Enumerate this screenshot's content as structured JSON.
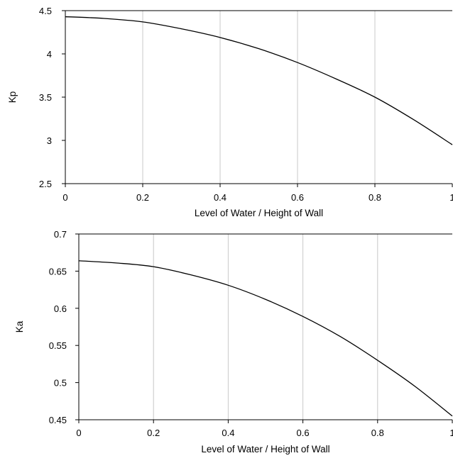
{
  "chart_data": [
    {
      "type": "line",
      "title": "",
      "xlabel": "Level of Water / Height of Wall",
      "ylabel": "Kp",
      "xlim": [
        0,
        1
      ],
      "ylim": [
        2.5,
        4.5
      ],
      "xticks": [
        "0",
        "0.2",
        "0.4",
        "0.6",
        "0.8",
        "1"
      ],
      "yticks": [
        "2.5",
        "3",
        "3.5",
        "4",
        "4.5"
      ],
      "grid": "vertical",
      "legend": "none",
      "series": [
        {
          "x": [
            0,
            0.1,
            0.2,
            0.3,
            0.4,
            0.5,
            0.6,
            0.7,
            0.8,
            0.9,
            1.0
          ],
          "y": [
            4.43,
            4.41,
            4.37,
            4.29,
            4.19,
            4.06,
            3.9,
            3.71,
            3.5,
            3.24,
            2.95
          ]
        }
      ]
    },
    {
      "type": "line",
      "title": "",
      "xlabel": "Level of Water / Height of Wall",
      "ylabel": "Ka",
      "xlim": [
        0,
        1
      ],
      "ylim": [
        0.45,
        0.7
      ],
      "xticks": [
        "0",
        "0.2",
        "0.4",
        "0.6",
        "0.8",
        "1"
      ],
      "yticks": [
        "0.45",
        "0.5",
        "0.55",
        "0.6",
        "0.65",
        "0.7"
      ],
      "grid": "vertical",
      "legend": "none",
      "series": [
        {
          "x": [
            0,
            0.1,
            0.2,
            0.3,
            0.4,
            0.5,
            0.6,
            0.7,
            0.8,
            0.9,
            1.0
          ],
          "y": [
            0.664,
            0.661,
            0.656,
            0.645,
            0.631,
            0.612,
            0.589,
            0.562,
            0.53,
            0.495,
            0.455
          ]
        }
      ]
    }
  ]
}
